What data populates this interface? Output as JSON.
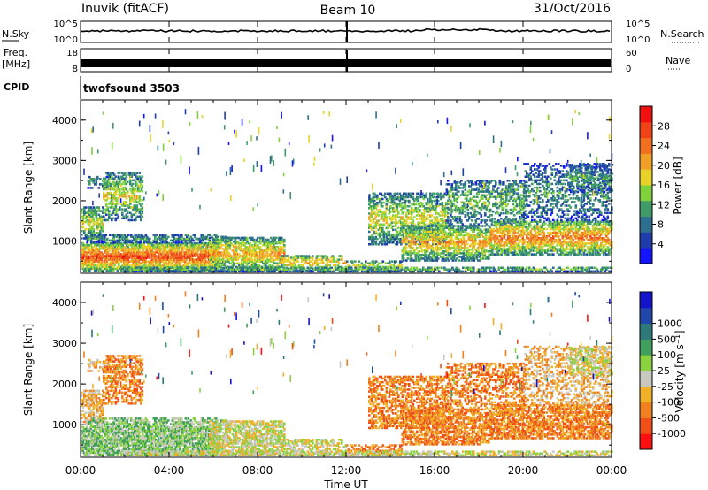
{
  "header": {
    "station": "Inuvik (fitACF)",
    "beam": "Beam 10",
    "date": "31/Oct/2016"
  },
  "panels": {
    "nsky": {
      "label": "N.Sky",
      "left_ticks": [
        "10^5",
        "10^0"
      ],
      "right_ticks": [
        "10^5",
        "10^0"
      ],
      "right_label": "N.Search"
    },
    "freq": {
      "label_1": "Freq.",
      "label_2": "[MHz]",
      "left_ticks": [
        "18",
        "8"
      ],
      "right_ticks": [
        "60",
        "0"
      ],
      "right_label": "Nave"
    },
    "cpid": {
      "label": "CPID",
      "value": "twofsound 3503"
    }
  },
  "colors": {
    "power": [
      "#1414ff",
      "#1e3caa",
      "#2e6e8e",
      "#3e9a66",
      "#7fd23e",
      "#e8d228",
      "#f0a028",
      "#f07020",
      "#f04418",
      "#f01010"
    ],
    "velocity": [
      "#ff1010",
      "#f05018",
      "#f08020",
      "#f0b028",
      "#c8c8c0",
      "#8ad240",
      "#3ea05a",
      "#2e7a7a",
      "#2048aa",
      "#1414cc"
    ]
  },
  "chart_data": [
    {
      "type": "heatmap",
      "name": "power",
      "ylabel": "Slant Range [km]",
      "yticks": [
        "1000",
        "2000",
        "3000",
        "4000"
      ],
      "ylim": [
        200,
        4500
      ],
      "xlim": [
        0,
        24
      ],
      "colorbar_label": "Power [dB]",
      "colorbar_ticks": [
        "4",
        "8",
        "12",
        "16",
        "20",
        "24",
        "28"
      ],
      "crange": [
        0,
        32
      ]
    },
    {
      "type": "heatmap",
      "name": "velocity",
      "ylabel": "Slant Range [km]",
      "yticks": [
        "1000",
        "2000",
        "3000",
        "4000"
      ],
      "ylim": [
        200,
        4500
      ],
      "xlim": [
        0,
        24
      ],
      "colorbar_label": "Velocity [m s⁻¹]",
      "colorbar_ticks": [
        "-1000",
        "-500",
        "-100",
        "-25",
        "25",
        "100",
        "500",
        "1000"
      ]
    }
  ],
  "xaxis": {
    "label": "Time UT",
    "ticks": [
      "00:00",
      "04:00",
      "08:00",
      "12:00",
      "16:00",
      "20:00",
      "00:00"
    ]
  }
}
